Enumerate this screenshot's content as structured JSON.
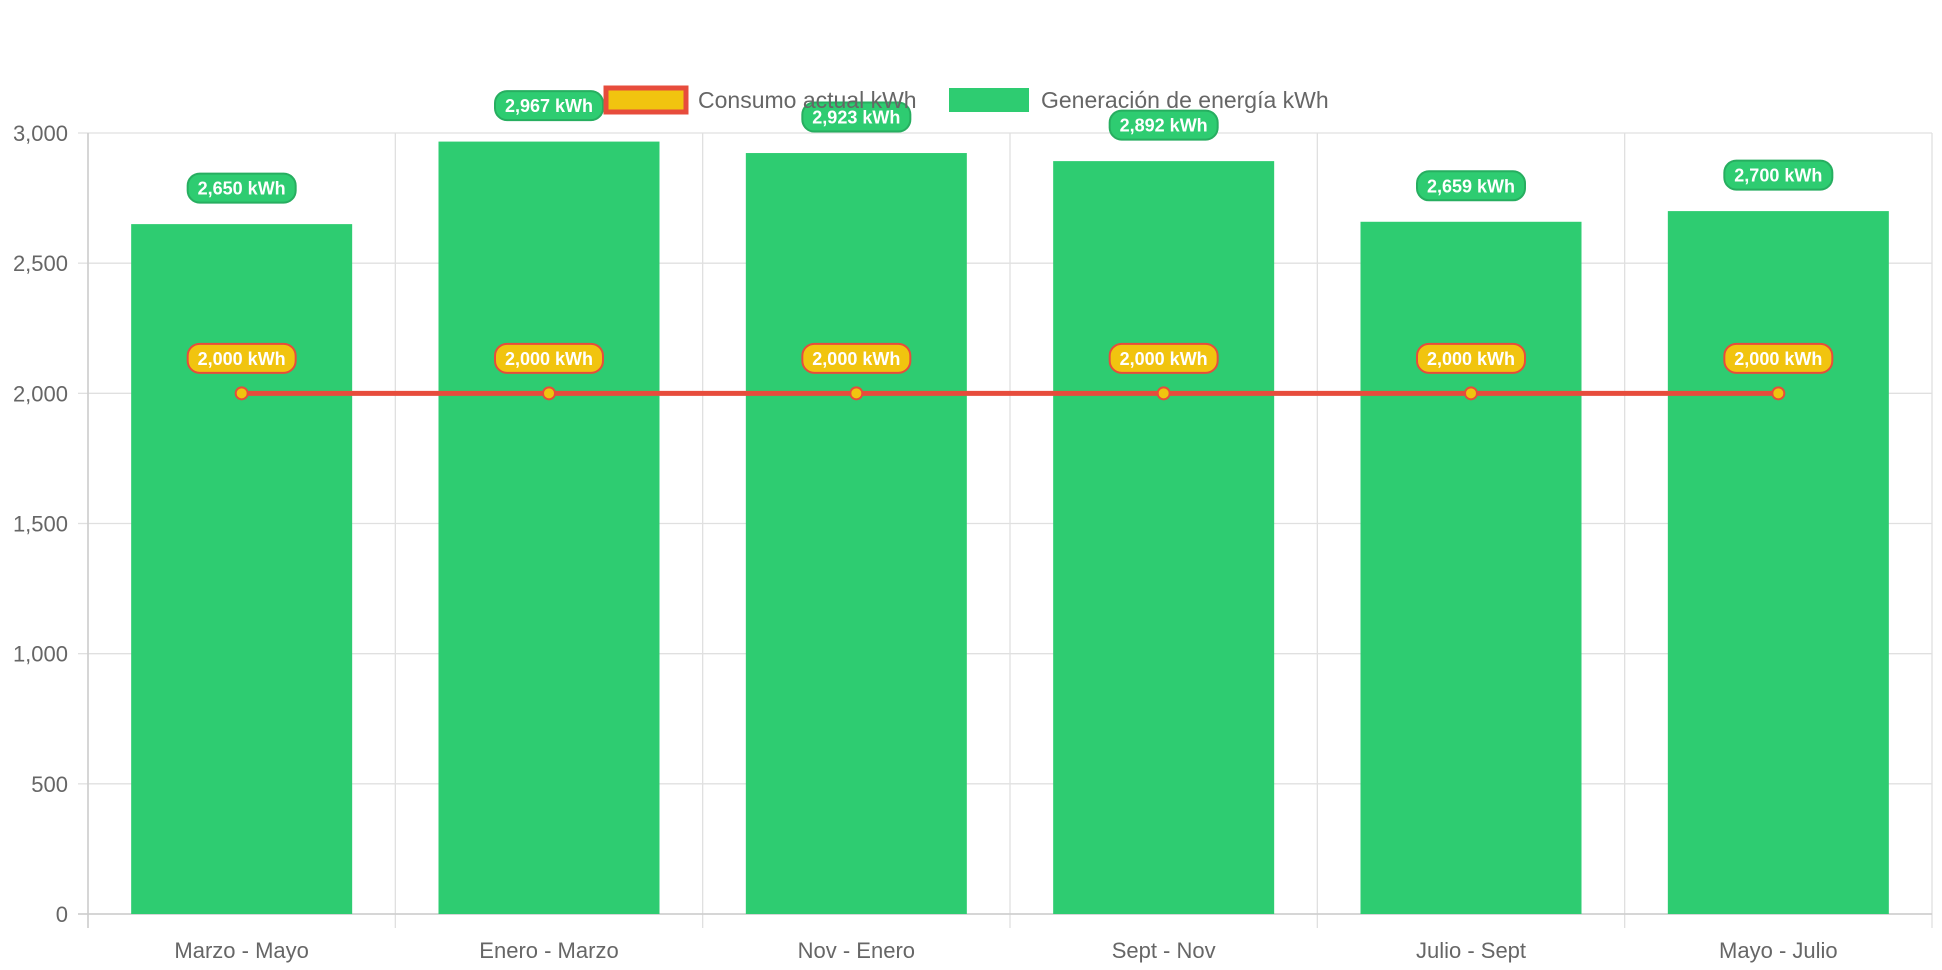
{
  "chart_data": {
    "type": "bar",
    "categories": [
      "Marzo - Mayo",
      "Enero - Marzo",
      "Nov - Enero",
      "Sept - Nov",
      "Julio - Sept",
      "Mayo - Julio"
    ],
    "y_ticks": [
      "0",
      "500",
      "1,000",
      "1,500",
      "2,000",
      "2,500",
      "3,000"
    ],
    "y_tick_values": [
      0,
      500,
      1000,
      1500,
      2000,
      2500,
      3000
    ],
    "ylim": [
      0,
      3000
    ],
    "grid": true,
    "legend_position": "top",
    "series": [
      {
        "name": "Consumo actual kWh",
        "type": "line",
        "values": [
          2000,
          2000,
          2000,
          2000,
          2000,
          2000
        ],
        "labels": [
          "2,000 kWh",
          "2,000 kWh",
          "2,000 kWh",
          "2,000 kWh",
          "2,000 kWh",
          "2,000 kWh"
        ],
        "line_color": "#e74c3c",
        "fill_color": "#f1c40f"
      },
      {
        "name": "Generación de energía kWh",
        "type": "bar",
        "values": [
          2650,
          2967,
          2923,
          2892,
          2659,
          2700
        ],
        "labels": [
          "2,650 kWh",
          "2,967 kWh",
          "2,923 kWh",
          "2,892 kWh",
          "2,659 kWh",
          "2,700 kWh"
        ],
        "color": "#2ecc71",
        "label_border": "#27ae60"
      }
    ],
    "colors": {
      "grid": "#e0e0e0",
      "axis_text": "#666666"
    }
  }
}
